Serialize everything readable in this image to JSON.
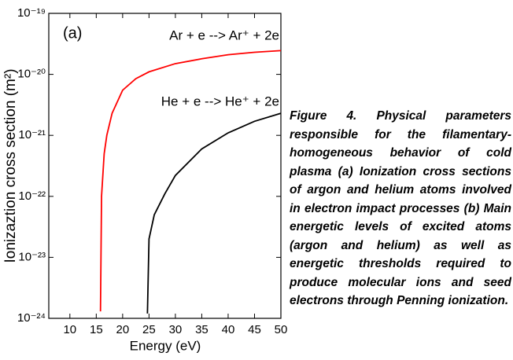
{
  "chart_data": {
    "type": "line",
    "xlabel": "Energy (eV)",
    "ylabel": "Ionizaztion cross section (m²)",
    "annotations": [
      "(a)"
    ],
    "xlim": [
      6,
      50
    ],
    "xticks": [
      10,
      15,
      20,
      25,
      30,
      35,
      40,
      45,
      50
    ],
    "yscale": "log",
    "ylim": [
      1e-24,
      1e-19
    ],
    "yticks": [
      {
        "value": 1e-24,
        "label": "10⁻²⁴"
      },
      {
        "value": 1e-23,
        "label": "10⁻²³"
      },
      {
        "value": 1e-22,
        "label": "10⁻²²"
      },
      {
        "value": 1e-21,
        "label": "10⁻²¹"
      },
      {
        "value": 1e-20,
        "label": "10⁻²⁰"
      },
      {
        "value": 1e-19,
        "label": "10⁻¹⁹"
      }
    ],
    "series": [
      {
        "name": "Ar + e --> Ar⁺ + 2e",
        "color": "#ff0000",
        "x": [
          15.8,
          16,
          16.5,
          17,
          18,
          20,
          22.5,
          25,
          30,
          35,
          40,
          45,
          50
        ],
        "values": [
          1.3e-24,
          1e-22,
          5e-22,
          1e-21,
          2.3e-21,
          5.5e-21,
          8.5e-21,
          1.1e-20,
          1.5e-20,
          1.8e-20,
          2.1e-20,
          2.3e-20,
          2.45e-20
        ]
      },
      {
        "name": "He + e --> He⁺ + 2e",
        "color": "#000000",
        "x": [
          24.7,
          25,
          26,
          28,
          30,
          35,
          40,
          45,
          50
        ],
        "values": [
          1.2e-24,
          2e-23,
          5e-23,
          1.1e-22,
          2.2e-22,
          6e-22,
          1.1e-21,
          1.7e-21,
          2.3e-21
        ]
      }
    ]
  },
  "caption": "Figure 4. Physical parameters responsible for the filamentary-homogeneous behavior of cold plasma (a) Ionization cross sections of argon and helium atoms involved in electron impact processes (b) Main energetic levels of excited atoms (argon and helium) as well as energetic thresholds required to produce molecular ions and seed electrons through Penning ionization."
}
